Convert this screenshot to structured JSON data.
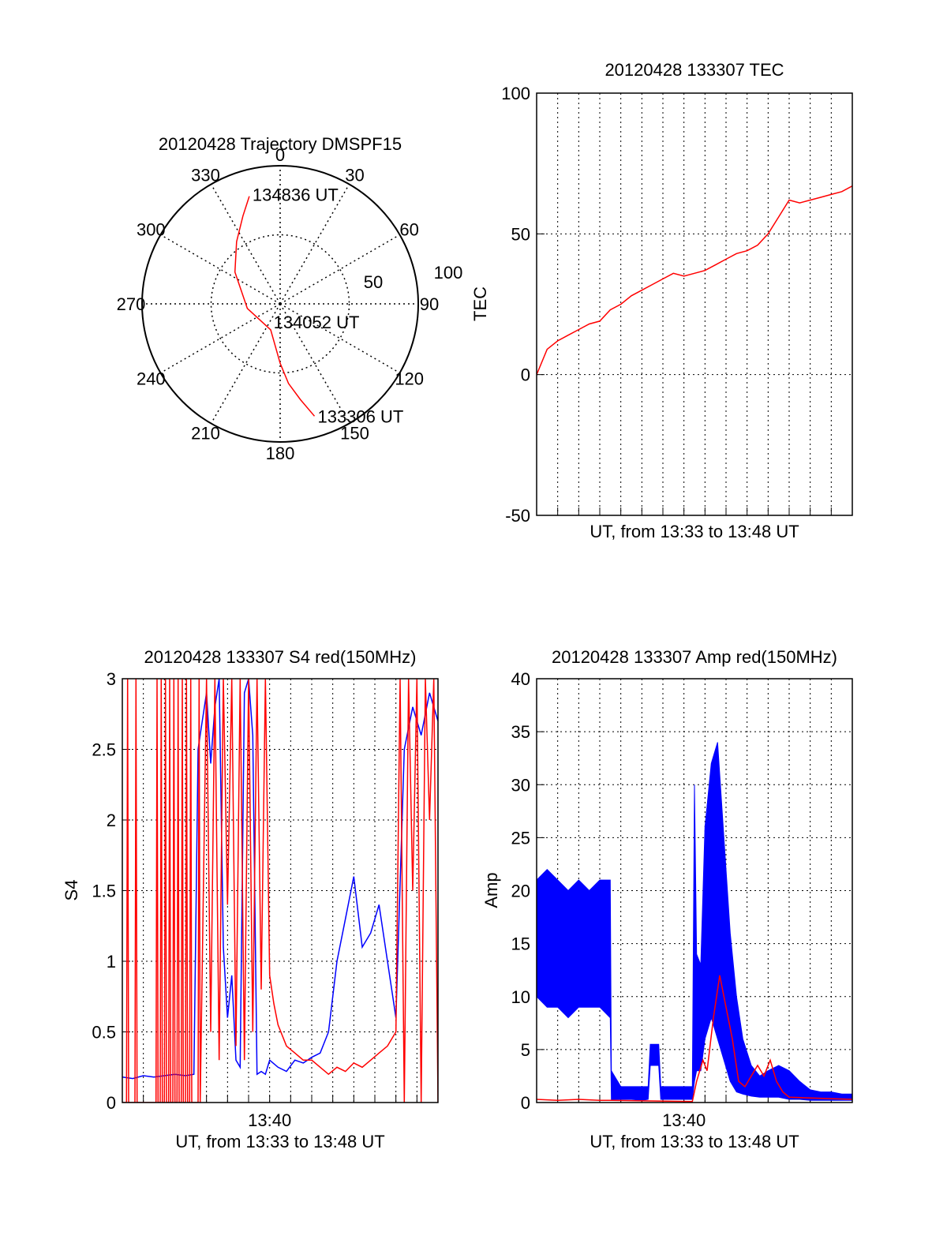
{
  "colors": {
    "red": "#ff0000",
    "blue": "#0000ff",
    "axis": "#000000",
    "grid": "#000000"
  },
  "chart_data": [
    {
      "type": "polar",
      "title": "20120428 Trajectory DMSPF15",
      "angle_labels": [
        "0",
        "30",
        "60",
        "90",
        "120",
        "150",
        "180",
        "210",
        "240",
        "270",
        "300",
        "330"
      ],
      "angle_values": [
        0,
        30,
        60,
        90,
        120,
        150,
        180,
        210,
        240,
        270,
        300,
        330
      ],
      "radius_labels": [
        "50",
        "100"
      ],
      "radius_max": 100,
      "rings": [
        50,
        100
      ],
      "trajectory": {
        "color": "red",
        "points": [
          {
            "azimuth": 344,
            "elevation": 19
          },
          {
            "azimuth": 337,
            "elevation": 31
          },
          {
            "azimuth": 325,
            "elevation": 45
          },
          {
            "azimuth": 305,
            "elevation": 60
          },
          {
            "azimuth": 262,
            "elevation": 76
          },
          {
            "azimuth": 200,
            "elevation": 80
          },
          {
            "azimuth": 180,
            "elevation": 57
          },
          {
            "azimuth": 174,
            "elevation": 42
          },
          {
            "azimuth": 168,
            "elevation": 29
          },
          {
            "azimuth": 163,
            "elevation": 15
          }
        ]
      },
      "point_labels": [
        {
          "text": "134836 UT",
          "azimuth": 344,
          "elevation": 19
        },
        {
          "text": "134052 UT",
          "azimuth": 110,
          "elevation": 82
        },
        {
          "text": "133306 UT",
          "azimuth": 163,
          "elevation": 15
        }
      ]
    },
    {
      "type": "line",
      "title": "20120428 133307 TEC",
      "xlabel": "UT, from 13:33 to 13:48 UT",
      "ylabel": "TEC",
      "xlim": [
        0,
        15
      ],
      "ylim": [
        -50,
        100
      ],
      "yticks": [
        -50,
        0,
        50,
        100
      ],
      "xticks": [],
      "x_minor": [
        1,
        2,
        3,
        4,
        5,
        6,
        7,
        8,
        9,
        10,
        11,
        12,
        13,
        14
      ],
      "series": [
        {
          "color": "red",
          "x": [
            0,
            0.5,
            1,
            1.5,
            2,
            2.5,
            3,
            3.5,
            4,
            4.5,
            5,
            5.5,
            6,
            6.5,
            7,
            7.5,
            8,
            8.5,
            9,
            9.5,
            10,
            10.5,
            11,
            11.5,
            12,
            12.5,
            13,
            13.5,
            14,
            14.5,
            15
          ],
          "values": [
            0,
            9,
            12,
            14,
            16,
            18,
            19,
            23,
            25,
            28,
            30,
            32,
            34,
            36,
            35,
            36,
            37,
            39,
            41,
            43,
            44,
            46,
            50,
            56,
            62,
            61,
            62,
            63,
            64,
            65,
            67
          ]
        }
      ]
    },
    {
      "type": "line",
      "title": "20120428 133307 S4 red(150MHz)",
      "xlabel": "UT, from 13:33 to 13:48 UT",
      "ylabel": "S4",
      "xlim": [
        0,
        15
      ],
      "ylim": [
        0,
        3
      ],
      "yticks": [
        "0",
        "0.5",
        "1",
        "1.5",
        "2",
        "2.5",
        "3"
      ],
      "ytick_values": [
        0,
        0.5,
        1,
        1.5,
        2,
        2.5,
        3
      ],
      "xticks": [
        "13:40"
      ],
      "xtick_values": [
        7
      ],
      "x_minor": [
        1,
        2,
        3,
        4,
        5,
        6,
        8,
        9,
        10,
        11,
        12,
        13,
        14
      ],
      "series": [
        {
          "color": "blue",
          "x": [
            0,
            0.5,
            1,
            1.5,
            2,
            2.5,
            3,
            3.4,
            3.6,
            3.8,
            4.0,
            4.2,
            4.4,
            4.6,
            4.8,
            5.0,
            5.2,
            5.4,
            5.6,
            5.8,
            6.0,
            6.2,
            6.4,
            6.6,
            6.8,
            7.0,
            7.4,
            7.8,
            8.2,
            8.6,
            9.0,
            9.4,
            9.8,
            10.2,
            10.6,
            11.0,
            11.4,
            11.8,
            12.2,
            12.6,
            13.0,
            13.4,
            13.8,
            14.2,
            14.6,
            15
          ],
          "values": [
            0.18,
            0.17,
            0.19,
            0.18,
            0.19,
            0.2,
            0.19,
            0.2,
            2.5,
            2.7,
            2.9,
            2.4,
            2.8,
            3.0,
            1.1,
            0.6,
            0.9,
            0.3,
            0.25,
            2.9,
            3.0,
            2.6,
            0.2,
            0.22,
            0.2,
            0.3,
            0.25,
            0.22,
            0.3,
            0.28,
            0.32,
            0.35,
            0.5,
            1.0,
            1.3,
            1.6,
            1.1,
            1.2,
            1.4,
            1.0,
            0.6,
            2.5,
            2.8,
            2.6,
            2.9,
            2.7
          ]
        },
        {
          "color": "red",
          "x": [
            0,
            0.2,
            0.25,
            0.3,
            0.6,
            0.65,
            0.7,
            1.6,
            1.65,
            1.7,
            1.8,
            1.85,
            1.9,
            2.0,
            2.05,
            2.1,
            2.2,
            2.25,
            2.3,
            2.4,
            2.45,
            2.5,
            2.6,
            2.65,
            2.7,
            2.8,
            2.85,
            2.9,
            3.0,
            3.05,
            3.1,
            3.2,
            3.25,
            3.3,
            3.6,
            3.65,
            3.7,
            4.0,
            4.2,
            4.4,
            4.6,
            4.8,
            5.0,
            5.2,
            5.4,
            5.6,
            5.8,
            6.0,
            6.2,
            6.4,
            6.6,
            6.8,
            7.0,
            7.2,
            7.4,
            7.8,
            8.2,
            8.6,
            9.0,
            9.4,
            9.8,
            10.2,
            10.6,
            11.0,
            11.4,
            11.8,
            12.2,
            12.6,
            13.0,
            13.2,
            13.4,
            13.6,
            13.8,
            14.0,
            14.2,
            14.4,
            14.6,
            14.8,
            15
          ],
          "values": [
            0,
            0,
            3,
            0,
            0,
            3,
            0,
            0,
            3,
            0,
            0,
            3,
            0,
            0,
            3,
            0,
            0,
            3,
            0,
            0,
            3,
            0,
            0,
            3,
            0,
            0,
            3,
            0,
            0,
            3,
            0,
            0,
            3,
            0,
            0,
            3,
            0,
            3,
            0.5,
            3,
            0.3,
            3,
            1.4,
            3,
            0.4,
            3,
            0.3,
            3,
            0.5,
            3,
            0.8,
            3,
            0.9,
            0.7,
            0.55,
            0.4,
            0.35,
            0.3,
            0.3,
            0.25,
            0.2,
            0.25,
            0.22,
            0.28,
            0.25,
            0.3,
            0.35,
            0.4,
            0.5,
            3,
            0,
            3,
            1.5,
            3,
            0,
            3,
            2.0,
            3,
            0
          ]
        }
      ]
    },
    {
      "type": "line",
      "title": "20120428 133307 Amp red(150MHz)",
      "xlabel": "UT, from 13:33 to 13:48 UT",
      "ylabel": "Amp",
      "xlim": [
        0,
        15
      ],
      "ylim": [
        0,
        40
      ],
      "yticks": [
        "0",
        "5",
        "10",
        "15",
        "20",
        "25",
        "30",
        "35",
        "40"
      ],
      "ytick_values": [
        0,
        5,
        10,
        15,
        20,
        25,
        30,
        35,
        40
      ],
      "xticks": [
        "13:40"
      ],
      "xtick_values": [
        7
      ],
      "x_minor": [
        1,
        2,
        3,
        4,
        5,
        6,
        8,
        9,
        10,
        11,
        12,
        13,
        14
      ],
      "series": [
        {
          "color": "blue",
          "band": true,
          "x": [
            0,
            0.5,
            1,
            1.5,
            2,
            2.5,
            3,
            3.5,
            3.55,
            4,
            4.5,
            5,
            5.3,
            5.4,
            5.8,
            5.9,
            6.5,
            7,
            7.4,
            7.5,
            7.6,
            7.8,
            8.0,
            8.3,
            8.6,
            8.9,
            9.2,
            9.5,
            9.8,
            10.2,
            10.6,
            11,
            11.5,
            12,
            12.5,
            13,
            13.5,
            14,
            14.5,
            15
          ],
          "upper": [
            21,
            22,
            21,
            20,
            21,
            20,
            21,
            21,
            3,
            1.5,
            1.5,
            1.5,
            1.5,
            5.5,
            5.5,
            1.5,
            1.5,
            1.5,
            1.5,
            30,
            14,
            13,
            26,
            32,
            34,
            25,
            16,
            10,
            6,
            3.5,
            2.5,
            3,
            3.5,
            3,
            2,
            1.2,
            1,
            1,
            0.8,
            0.8
          ],
          "lower": [
            10,
            9,
            9,
            8,
            9,
            9,
            9,
            8,
            0.3,
            0.3,
            0.3,
            0.2,
            0.3,
            3.5,
            3.5,
            0.3,
            0.3,
            0.3,
            0.3,
            2,
            3,
            3,
            6,
            8,
            6,
            4,
            2,
            1,
            0.8,
            0.6,
            0.5,
            0.5,
            0.5,
            0.3,
            0.3,
            0.2,
            0.2,
            0.2,
            0.2,
            0.2
          ]
        },
        {
          "color": "red",
          "x": [
            0,
            1,
            2,
            3,
            3.6,
            7.4,
            7.6,
            7.9,
            8.1,
            8.4,
            8.7,
            9.0,
            9.3,
            9.6,
            9.9,
            10.2,
            10.5,
            10.8,
            11.1,
            11.4,
            11.7,
            12.0,
            15
          ],
          "values": [
            0.3,
            0.2,
            0.3,
            0.2,
            0.2,
            0.1,
            2,
            4,
            3,
            8,
            12,
            9,
            6,
            2,
            1.5,
            2.5,
            3.5,
            2.5,
            4,
            2,
            1,
            0.5,
            0.3
          ]
        }
      ]
    }
  ]
}
